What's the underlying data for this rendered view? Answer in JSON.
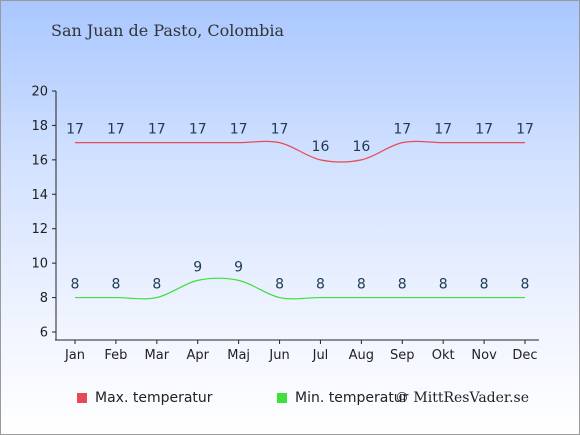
{
  "title": "San Juan de Pasto, Colombia",
  "copyright": "© MittResVader.se",
  "colors": {
    "max": "#e84a55",
    "min": "#3ee03a",
    "axis": "#222222",
    "label": "#1e3a55"
  },
  "chart_data": {
    "type": "line",
    "categories": [
      "Jan",
      "Feb",
      "Mar",
      "Apr",
      "Maj",
      "Jun",
      "Jul",
      "Aug",
      "Sep",
      "Okt",
      "Nov",
      "Dec"
    ],
    "ylim": [
      6,
      20
    ],
    "yticks": [
      6,
      8,
      10,
      12,
      14,
      16,
      18,
      20
    ],
    "grid": false,
    "legend_position": "bottom",
    "series": [
      {
        "name": "Max. temperatur",
        "color": "#e84a55",
        "values": [
          17,
          17,
          17,
          17,
          17,
          17,
          16,
          16,
          17,
          17,
          17,
          17
        ]
      },
      {
        "name": "Min. temperatur",
        "color": "#3ee03a",
        "values": [
          8,
          8,
          8,
          9,
          9,
          8,
          8,
          8,
          8,
          8,
          8,
          8
        ]
      }
    ]
  }
}
